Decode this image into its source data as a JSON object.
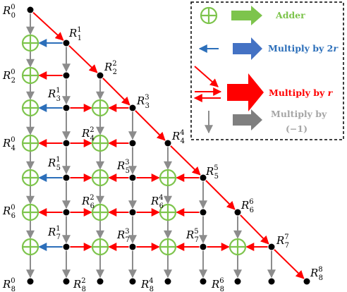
{
  "labels": [
    {
      "id": "R00",
      "sup": "0",
      "sub": "0"
    },
    {
      "id": "R11",
      "sup": "1",
      "sub": "1"
    },
    {
      "id": "R20",
      "sup": "0",
      "sub": "2"
    },
    {
      "id": "R22",
      "sup": "2",
      "sub": "2"
    },
    {
      "id": "R31",
      "sup": "1",
      "sub": "3"
    },
    {
      "id": "R33",
      "sup": "3",
      "sub": "3"
    },
    {
      "id": "R40",
      "sup": "0",
      "sub": "4"
    },
    {
      "id": "R42",
      "sup": "2",
      "sub": "4"
    },
    {
      "id": "R44",
      "sup": "4",
      "sub": "4"
    },
    {
      "id": "R51",
      "sup": "1",
      "sub": "5"
    },
    {
      "id": "R53",
      "sup": "3",
      "sub": "5"
    },
    {
      "id": "R55",
      "sup": "5",
      "sub": "5"
    },
    {
      "id": "R60",
      "sup": "0",
      "sub": "6"
    },
    {
      "id": "R62",
      "sup": "2",
      "sub": "6"
    },
    {
      "id": "R64",
      "sup": "4",
      "sub": "6"
    },
    {
      "id": "R66",
      "sup": "6",
      "sub": "6"
    },
    {
      "id": "R71",
      "sup": "1",
      "sub": "7"
    },
    {
      "id": "R73",
      "sup": "3",
      "sub": "7"
    },
    {
      "id": "R75",
      "sup": "5",
      "sub": "7"
    },
    {
      "id": "R77",
      "sup": "7",
      "sub": "7"
    },
    {
      "id": "R80",
      "sup": "0",
      "sub": "8"
    },
    {
      "id": "R82",
      "sup": "2",
      "sub": "8"
    },
    {
      "id": "R84",
      "sup": "4",
      "sub": "8"
    },
    {
      "id": "R86",
      "sup": "6",
      "sub": "8"
    },
    {
      "id": "R88",
      "sup": "8",
      "sub": "8"
    }
  ],
  "label_letter": "R",
  "legend": {
    "adder": "Adder",
    "multiply_2r_prefix": "Multiply by 2",
    "multiply_2r_var": "r",
    "multiply_r_prefix": "Multiply by ",
    "multiply_r_var": "r",
    "multiply_neg1_line1": "Multiply by",
    "multiply_neg1_line2": "(−1)"
  },
  "colors": {
    "adder": "#7dc44c",
    "blue": "#2c6fba",
    "blue_arrow": "#4472c4",
    "red": "#ff0000",
    "gray": "#7f7f7f",
    "gray_legend": "#a6a6a6",
    "node": "#000000"
  }
}
